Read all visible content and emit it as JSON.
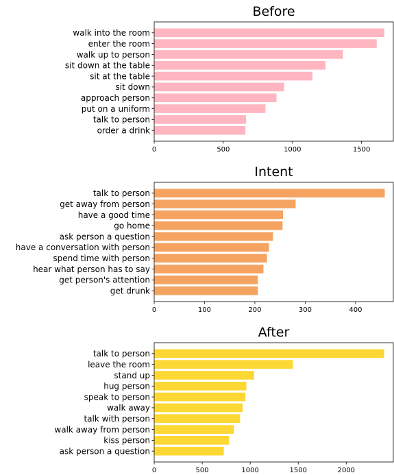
{
  "chart_data": [
    {
      "type": "bar",
      "orientation": "horizontal",
      "title": "Before",
      "color": "#FFB6C1",
      "categories": [
        "walk into the room",
        "enter the room",
        "walk up to person",
        "sit down at the table",
        "sit at the table",
        "sit down",
        "approach person",
        "put on a uniform",
        "talk to person",
        "order a drink"
      ],
      "values": [
        1665,
        1610,
        1365,
        1240,
        1145,
        940,
        885,
        805,
        665,
        660
      ],
      "xlim": [
        0,
        1730
      ],
      "xticks": [
        0,
        500,
        1000,
        1500
      ]
    },
    {
      "type": "bar",
      "orientation": "horizontal",
      "title": "Intent",
      "color": "#F4A460",
      "categories": [
        "talk to person",
        "get away from person",
        "have a good time",
        "go home",
        "ask person a question",
        "have a conversation with person",
        "spend time with person",
        "hear what person has to say",
        "get person's attention",
        "get drunk"
      ],
      "values": [
        458,
        281,
        256,
        255,
        236,
        228,
        224,
        217,
        206,
        206
      ],
      "xlim": [
        0,
        475
      ],
      "xticks": [
        0,
        100,
        200,
        300,
        400
      ]
    },
    {
      "type": "bar",
      "orientation": "horizontal",
      "title": "After",
      "color": "#FDD835",
      "categories": [
        "talk to person",
        "leave the room",
        "stand up",
        "hug person",
        "speak to person",
        "walk away",
        "talk with person",
        "walk away from person",
        "kiss person",
        "ask person a question"
      ],
      "values": [
        2395,
        1445,
        1040,
        960,
        950,
        920,
        895,
        830,
        780,
        725
      ],
      "xlim": [
        0,
        2490
      ],
      "xticks": [
        0,
        500,
        1000,
        1500,
        2000
      ]
    }
  ]
}
